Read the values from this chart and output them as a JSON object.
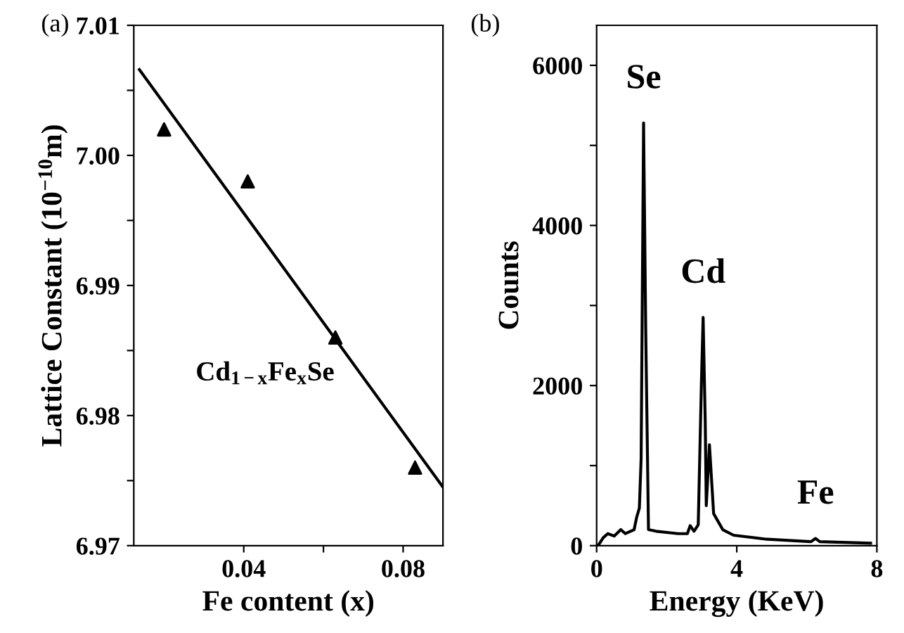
{
  "chart_data": [
    {
      "type": "scatter",
      "xlabel": "Fe content (x)",
      "ylabel": "Lattice Constant (10$^{−10}$m)",
      "annotations": [
        "(a)",
        "Cd$_{1−x}$Fe$_{x}$Se"
      ],
      "series": [
        {
          "type": "scatter",
          "color": "#000000",
          "marker": "triangle",
          "x": [
            0.02,
            0.041,
            0.063,
            0.083
          ],
          "values": [
            7.002,
            6.998,
            6.986,
            6.976
          ]
        },
        {
          "type": "line",
          "color": "#000000",
          "marker": "none",
          "line_style": "solid",
          "x": [
            0.0138,
            0.09
          ],
          "values": [
            7.0066,
            6.9745
          ]
        }
      ],
      "xlim": [
        0.0124,
        0.09
      ],
      "xticks": [
        0.04,
        {
          "value": 0.06,
          "label": null
        },
        0.08
      ],
      "ylim": [
        6.97,
        7.01
      ],
      "yticks": [
        6.97,
        {
          "value": 6.975,
          "label": null
        },
        6.98,
        {
          "value": 6.985,
          "label": null
        },
        6.99,
        {
          "value": 6.995,
          "label": null
        },
        "7.00",
        {
          "value": 7.005,
          "label": null
        },
        7.01
      ],
      "grid": false,
      "legend": false
    },
    {
      "type": "line",
      "xlabel": "Energy (KeV)",
      "ylabel": "Counts",
      "annotations": [
        "(b)",
        {
          "text": "Se",
          "x": 1.34,
          "y": 5280
        },
        {
          "text": "Cd",
          "x": 3.04,
          "y": 2850
        },
        {
          "text": "Fe",
          "x": 6.25,
          "y": 90
        }
      ],
      "series": [
        {
          "color": "#000000",
          "line_style": "solid",
          "marker": "none",
          "x": [
            0.04,
            0.19,
            0.32,
            0.5,
            0.69,
            0.82,
            1.07,
            1.14,
            1.22,
            1.27,
            1.34,
            1.4,
            1.48,
            1.7,
            2.33,
            2.59,
            2.67,
            2.78,
            2.9,
            2.99,
            3.04,
            3.1,
            3.13,
            3.22,
            3.34,
            3.47,
            3.6,
            3.91,
            4.86,
            6.12,
            6.25,
            6.37,
            7.82
          ],
          "values": [
            0,
            100,
            150,
            120,
            200,
            150,
            200,
            350,
            470,
            1090,
            5280,
            2730,
            200,
            180,
            150,
            150,
            250,
            180,
            260,
            2020,
            2850,
            1550,
            500,
            1260,
            400,
            300,
            200,
            130,
            80,
            50,
            90,
            50,
            30
          ]
        }
      ],
      "xlim": [
        0,
        8
      ],
      "xticks": [
        0,
        4,
        8
      ],
      "ylim": [
        0,
        6500
      ],
      "yticks": [
        0,
        {
          "value": 1000,
          "label": null
        },
        2000,
        {
          "value": 3000,
          "label": null
        },
        4000,
        {
          "value": 5000,
          "label": null
        },
        6000
      ],
      "grid": false,
      "legend": false
    }
  ]
}
